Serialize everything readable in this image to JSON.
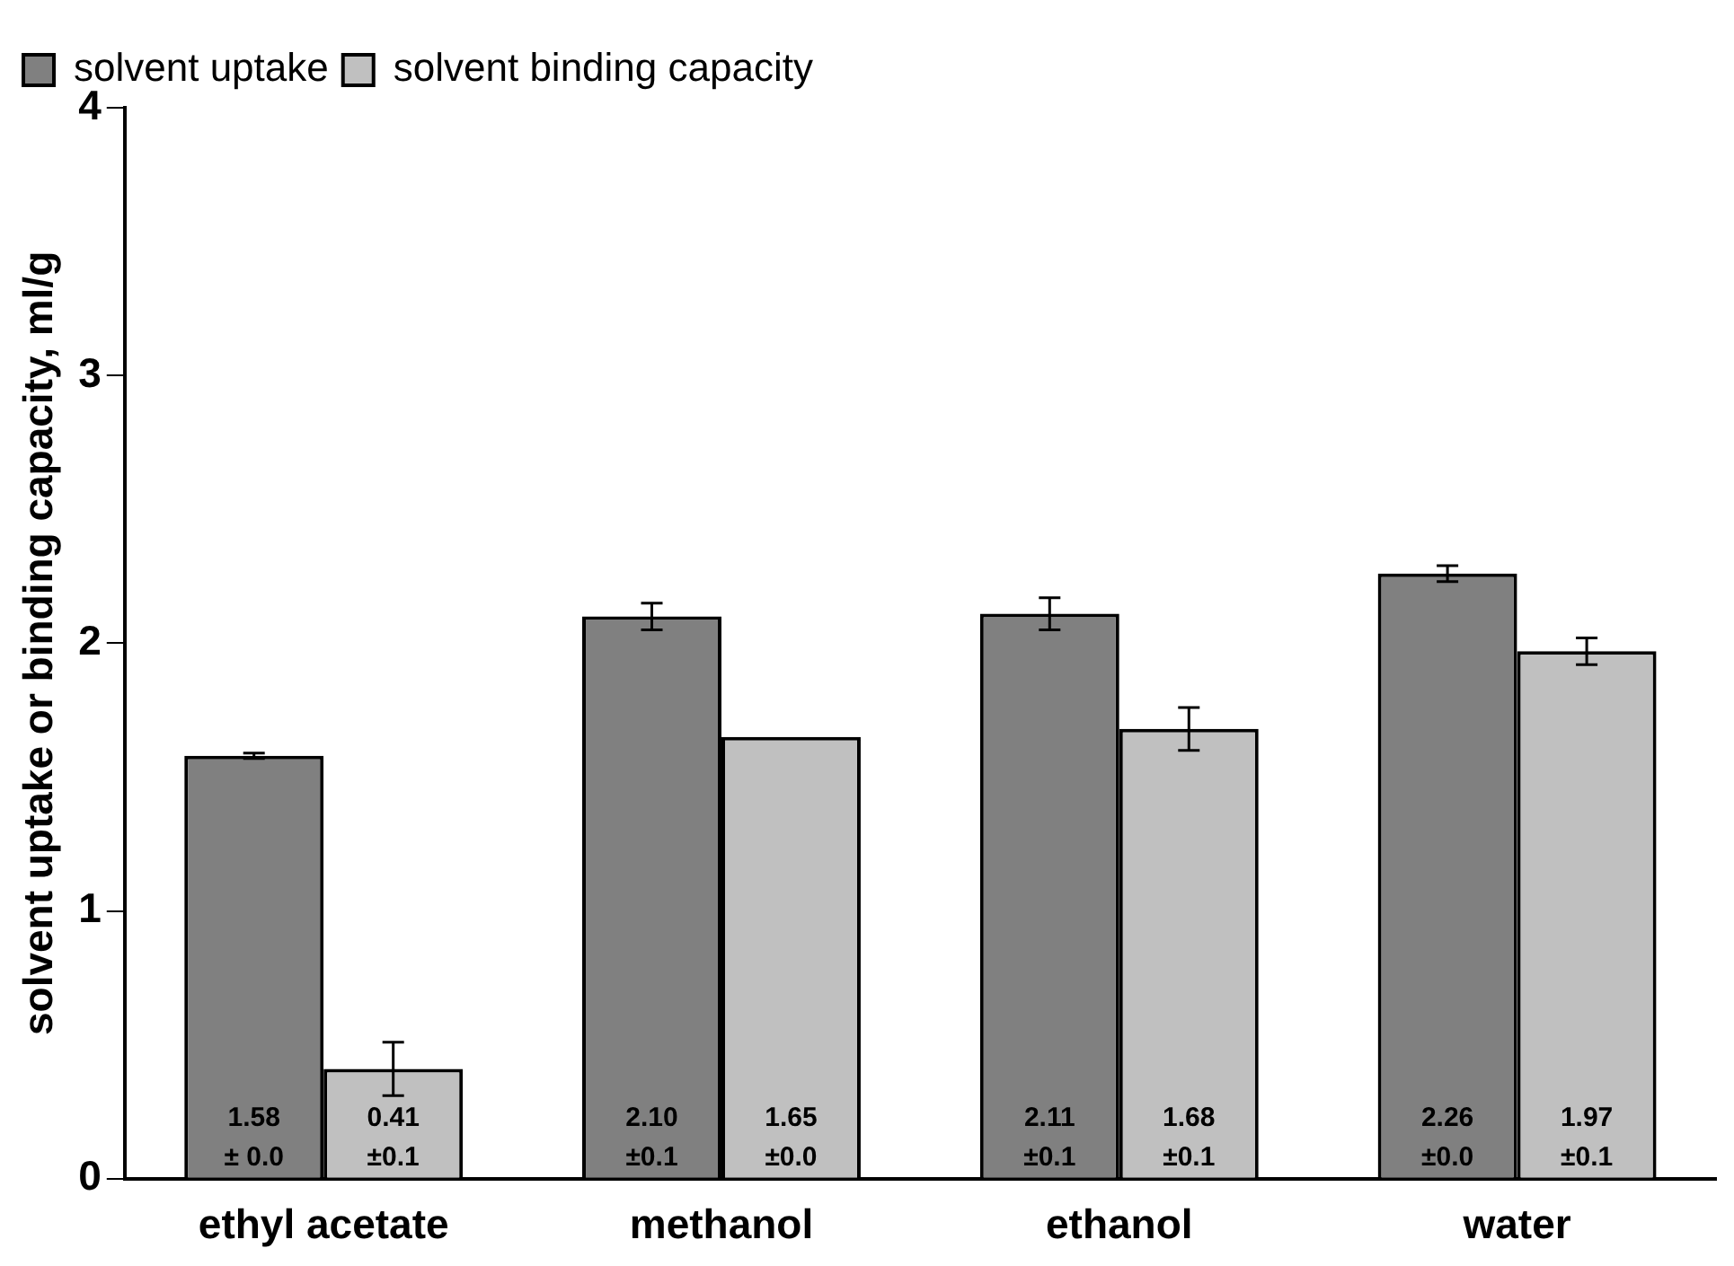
{
  "chart_data": {
    "type": "bar",
    "ylabel": "solvent uptake or binding capacity, ml/g",
    "categories": [
      "ethyl acetate",
      "methanol",
      "ethanol",
      "water"
    ],
    "series": [
      {
        "name": "solvent uptake",
        "color": "#808080",
        "values": [
          1.58,
          2.1,
          2.11,
          2.26
        ],
        "errors": [
          0.01,
          0.05,
          0.06,
          0.03
        ],
        "value_labels": [
          "1.58\n± 0.0",
          "2.10\n±0.1",
          "2.11\n±0.1",
          "2.26\n±0.0"
        ]
      },
      {
        "name": "solvent binding capacity",
        "color": "#c0c0c0",
        "values": [
          0.41,
          1.65,
          1.68,
          1.97
        ],
        "errors": [
          0.1,
          null,
          0.08,
          0.05
        ],
        "value_labels": [
          "0.41\n±0.1",
          "1.65\n±0.0",
          "1.68\n±0.1",
          "1.97\n±0.1"
        ]
      }
    ],
    "ylim": [
      0,
      4
    ],
    "yticks": [
      0,
      1,
      2,
      3,
      4
    ],
    "grid": false,
    "legend": "top left"
  }
}
